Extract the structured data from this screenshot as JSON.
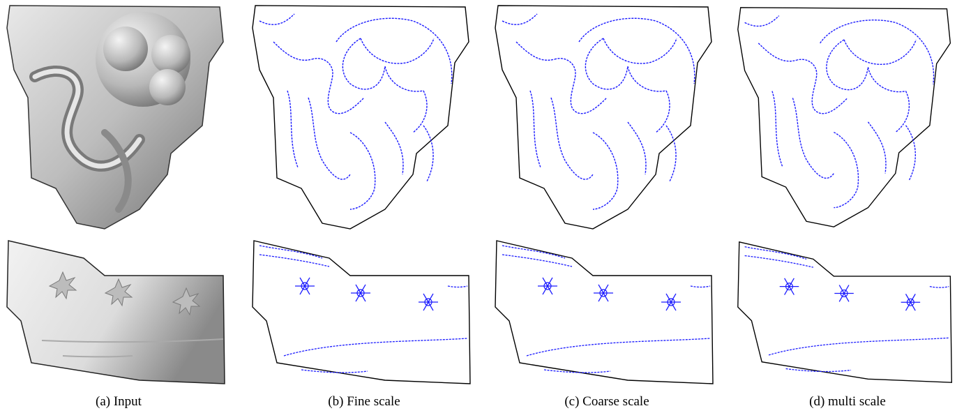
{
  "figure": {
    "captions": [
      "(a) Input",
      "(b) Fine scale",
      "(c) Coarse scale",
      "(d) multi scale"
    ],
    "rows": [
      "relief-fragment",
      "rim-fragment"
    ],
    "colors": {
      "shaded": "#9a9a9a",
      "outline": "#000000",
      "feature_lines": "#1a1aff",
      "background": "#ffffff"
    }
  }
}
